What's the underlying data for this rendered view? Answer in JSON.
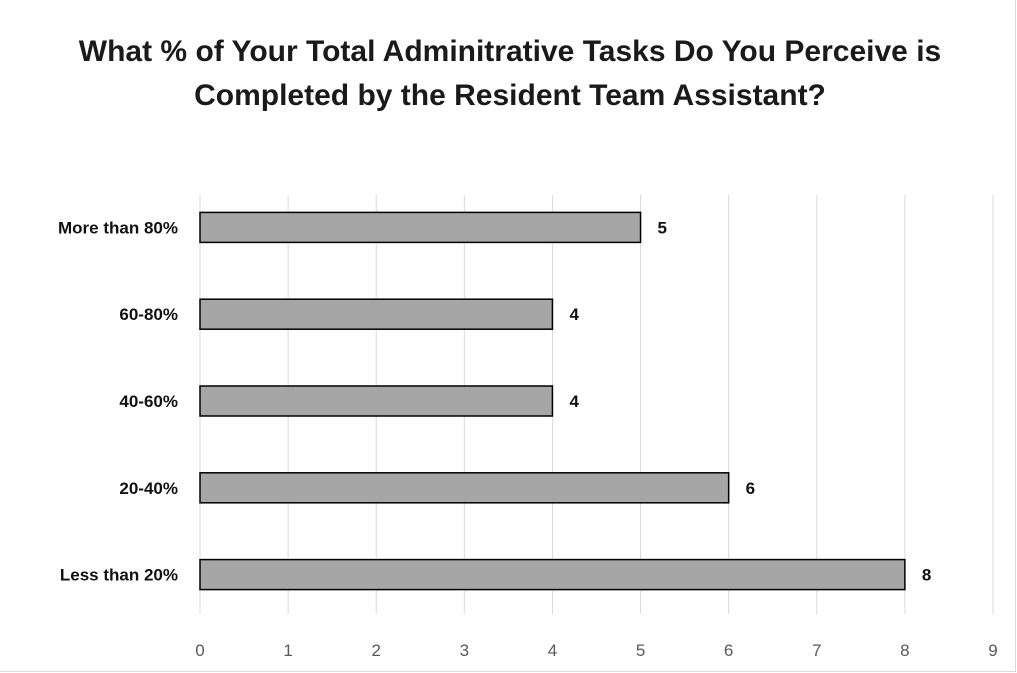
{
  "chart_data": {
    "type": "bar",
    "orientation": "horizontal",
    "title": "What % of Your Total Adminitrative Tasks Do You Perceive is Completed by the Resident Team Assistant?",
    "categories": [
      "More than 80%",
      "60-80%",
      "40-60%",
      "20-40%",
      "Less than 20%"
    ],
    "values": [
      5,
      4,
      4,
      6,
      8
    ],
    "xlim": [
      0,
      9
    ],
    "x_ticks": [
      "0",
      "1",
      "2",
      "3",
      "4",
      "5",
      "6",
      "7",
      "8",
      "9"
    ],
    "grid": "vertical",
    "bar_color": "#a6a6a6",
    "bar_edge_color": "#000000",
    "data_labels": true
  }
}
